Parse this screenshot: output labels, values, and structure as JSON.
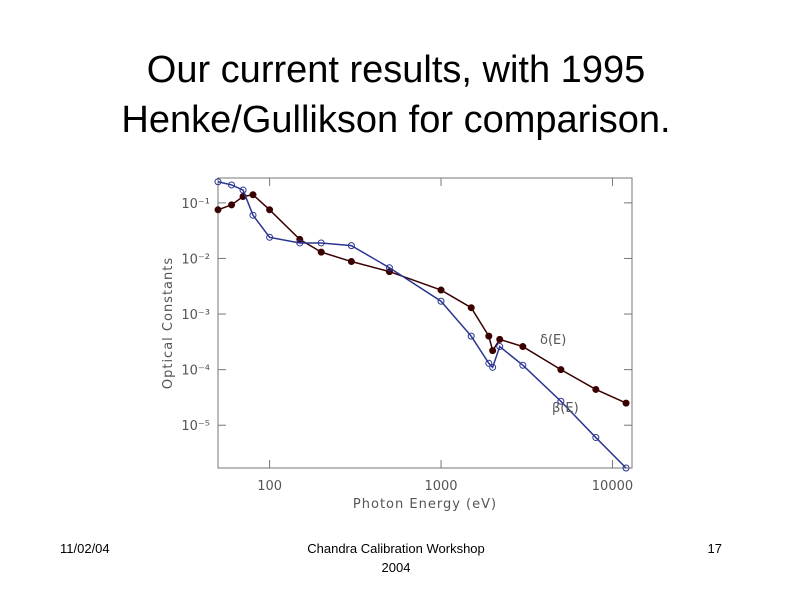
{
  "slide": {
    "title_lines": [
      "Our current results, with 1995",
      "Henke/Gullikson for comparison."
    ],
    "date": "11/02/04",
    "footer_lines": [
      "Chandra Calibration Workshop",
      "2004"
    ],
    "page": "17"
  },
  "chart_data": {
    "type": "scatter",
    "xscale": "log",
    "yscale": "log",
    "x_label": "Photon Energy (eV)",
    "y_label": "Optical Constants",
    "x": [
      50,
      60,
      70,
      80,
      100,
      150,
      200,
      300,
      500,
      1000,
      1500,
      1900,
      2000,
      2200,
      3000,
      5000,
      8000,
      12000
    ],
    "series": [
      {
        "name": "δ(E)",
        "color": "#3a0000",
        "values": [
          0.075,
          0.092,
          0.13,
          0.14,
          0.075,
          0.022,
          0.013,
          0.0088,
          0.0058,
          0.0027,
          0.0013,
          0.0004,
          0.00022,
          0.00035,
          0.00026,
          0.0001,
          4.4e-05,
          2.5e-05
        ]
      },
      {
        "name": "β(E)",
        "color": "#2a3590",
        "values": [
          0.24,
          0.21,
          0.17,
          0.06,
          0.024,
          0.019,
          0.019,
          0.017,
          0.0068,
          0.0017,
          0.0004,
          0.00013,
          0.00011,
          0.00026,
          0.00012,
          2.7e-05,
          6e-06,
          1.7e-06
        ]
      }
    ],
    "xlim": [
      50,
      13000
    ],
    "ylim": [
      1.7e-06,
      0.28
    ],
    "xticks": [
      100,
      1000,
      10000
    ],
    "yticks": [
      {
        "value": 0.1,
        "label": "10⁻¹"
      },
      {
        "value": 0.01,
        "label": "10⁻²"
      },
      {
        "value": 0.001,
        "label": "10⁻³"
      },
      {
        "value": 0.0001,
        "label": "10⁻⁴"
      },
      {
        "value": 1e-05,
        "label": "10⁻⁵"
      }
    ]
  }
}
